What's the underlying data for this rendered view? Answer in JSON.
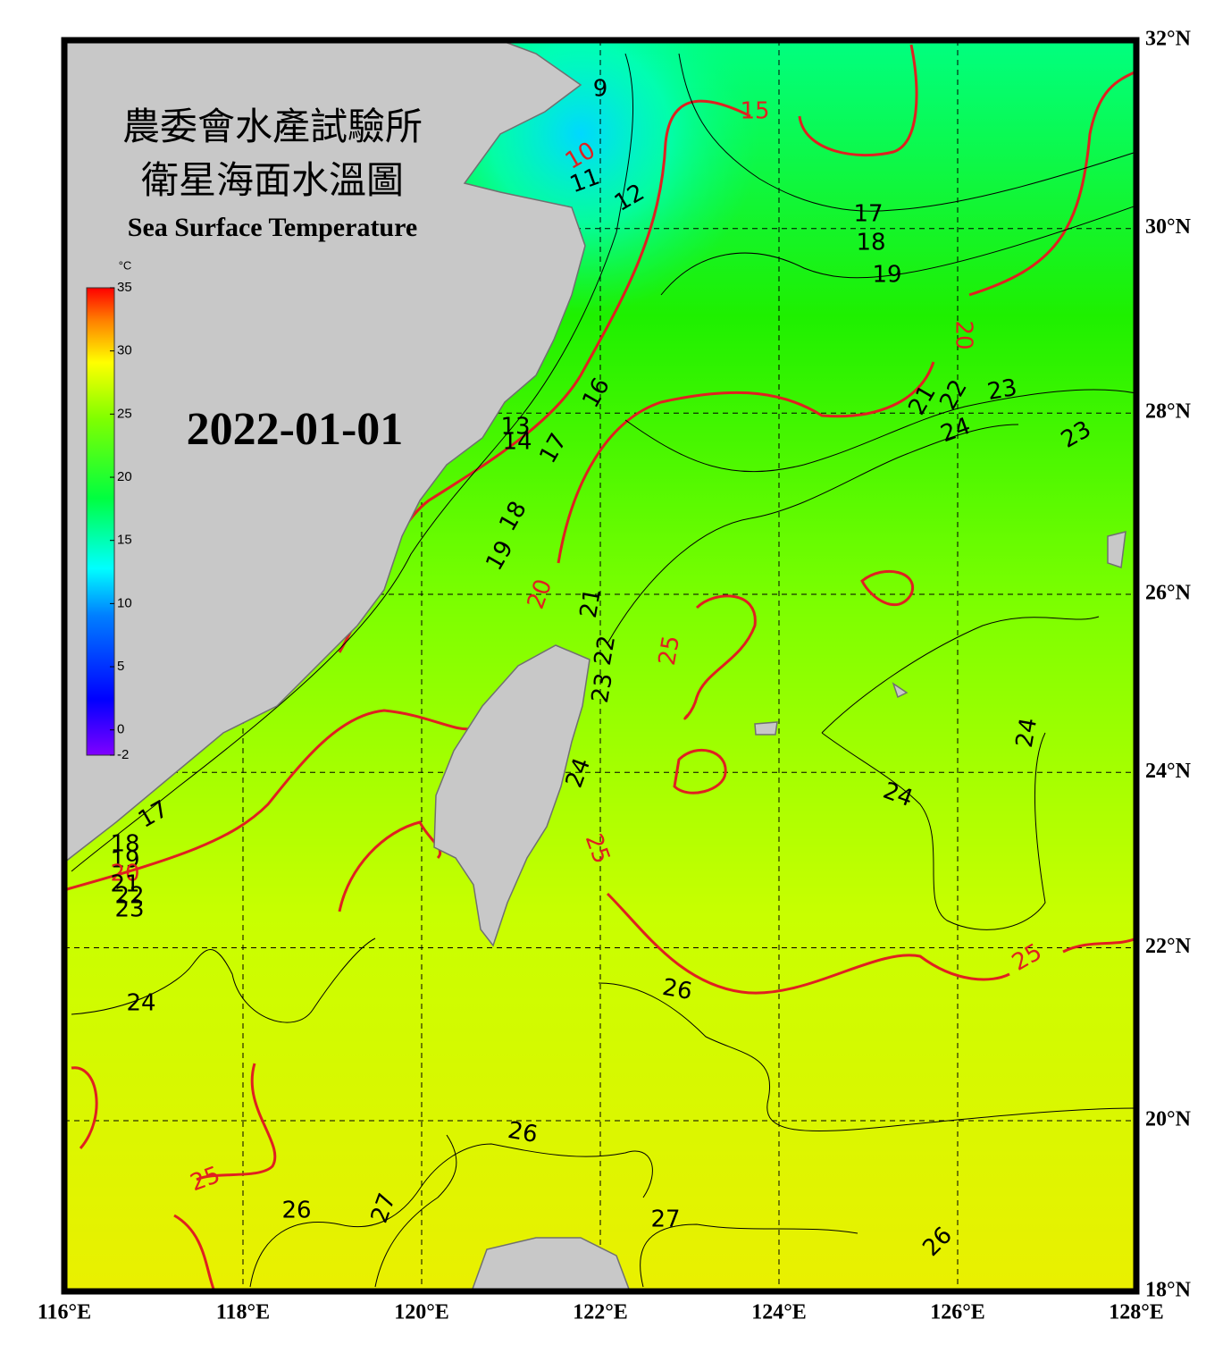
{
  "header": {
    "title_lines": [
      "農委會水產試驗所",
      "衛星海面水溫圖"
    ],
    "subtitle": "Sea Surface Temperature",
    "date": "2022-01-01"
  },
  "colorbar": {
    "unit": "°C",
    "ticks": [
      35,
      30,
      25,
      20,
      15,
      10,
      5,
      0,
      -2
    ]
  },
  "map": {
    "lonlim": [
      116,
      128
    ],
    "latlim": [
      18,
      32
    ],
    "xticks": [
      {
        "value": 116,
        "label": "116°E"
      },
      {
        "value": 118,
        "label": "118°E"
      },
      {
        "value": 120,
        "label": "120°E"
      },
      {
        "value": 122,
        "label": "122°E"
      },
      {
        "value": 124,
        "label": "124°E"
      },
      {
        "value": 126,
        "label": "126°E"
      },
      {
        "value": 128,
        "label": "128°E"
      }
    ],
    "yticks": [
      {
        "value": 18,
        "label": "18°N"
      },
      {
        "value": 20,
        "label": "20°N"
      },
      {
        "value": 22,
        "label": "22°N"
      },
      {
        "value": 24,
        "label": "24°N"
      },
      {
        "value": 26,
        "label": "26°N"
      },
      {
        "value": 28,
        "label": "28°N"
      },
      {
        "value": 30,
        "label": "30°N"
      },
      {
        "value": 32,
        "label": "32°N"
      }
    ],
    "contour_labels": [
      9,
      10,
      11,
      12,
      15,
      17,
      18,
      19,
      20,
      21,
      22,
      23,
      24,
      23,
      16,
      13,
      14,
      17,
      18,
      19,
      20,
      21,
      22,
      23,
      25,
      24,
      24,
      24,
      25,
      25,
      26,
      24,
      17,
      18,
      19,
      20,
      21,
      22,
      23,
      25,
      26,
      27,
      26,
      27,
      26
    ]
  }
}
